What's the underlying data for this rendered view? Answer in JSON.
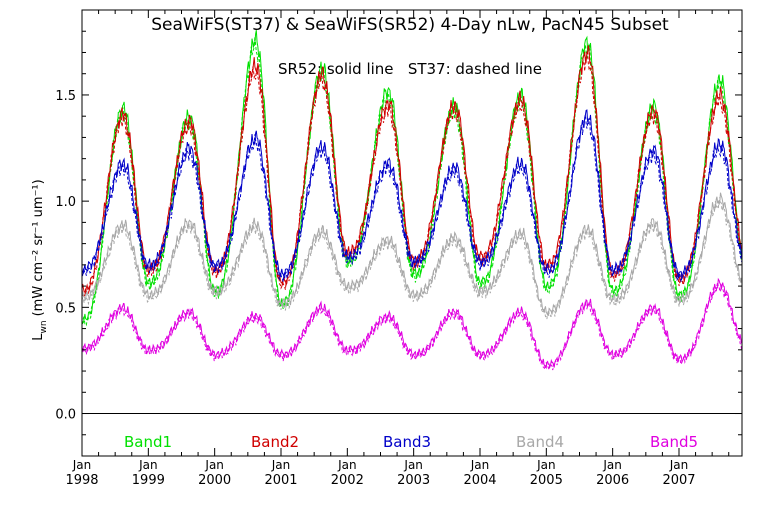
{
  "chart_data": {
    "type": "line",
    "title": "SeaWiFS(ST37) & SeaWiFS(SR52) 4-Day nLw, PacN45 Subset",
    "annotation": "SR52: solid line   ST37: dashed line",
    "ylabel_main": "L",
    "ylabel_sub": "wn",
    "ylabel_units": "(mW cm⁻² sr⁻¹ um⁻¹)",
    "xlim": [
      1998.0,
      2007.95
    ],
    "ylim": [
      -0.2,
      1.9
    ],
    "zero_line": 0.0,
    "y_ticks": [
      0.0,
      0.5,
      1.0,
      1.5
    ],
    "y_tick_labels": [
      "0.0",
      "0.5",
      "1.0",
      "1.5"
    ],
    "x_ticks": [
      1998,
      1999,
      2000,
      2001,
      2002,
      2003,
      2004,
      2005,
      2006,
      2007
    ],
    "x_tick_top_labels": [
      "Jan",
      "Jan",
      "Jan",
      "Jan",
      "Jan",
      "Jan",
      "Jan",
      "Jan",
      "Jan",
      "Jan"
    ],
    "x_tick_labels": [
      "1998",
      "1999",
      "2000",
      "2001",
      "2002",
      "2003",
      "2004",
      "2005",
      "2006",
      "2007"
    ],
    "series": [
      {
        "name": "Band1",
        "color": "#00e000",
        "peaks": [
          1.44,
          1.4,
          1.76,
          1.63,
          1.52,
          1.45,
          1.5,
          1.75,
          1.45,
          1.57
        ],
        "troughs": [
          0.44,
          0.62,
          0.58,
          0.52,
          0.72,
          0.66,
          0.62,
          0.6,
          0.58,
          0.56,
          0.7
        ]
      },
      {
        "name": "Band2",
        "color": "#d00000",
        "peaks": [
          1.41,
          1.38,
          1.64,
          1.6,
          1.46,
          1.45,
          1.48,
          1.7,
          1.43,
          1.5
        ],
        "troughs": [
          0.58,
          0.68,
          0.68,
          0.62,
          0.76,
          0.72,
          0.74,
          0.7,
          0.66,
          0.64,
          0.74
        ]
      },
      {
        "name": "Band3",
        "color": "#0000c8",
        "peaks": [
          1.18,
          1.25,
          1.3,
          1.26,
          1.18,
          1.16,
          1.18,
          1.4,
          1.24,
          1.27
        ],
        "troughs": [
          0.68,
          0.7,
          0.7,
          0.66,
          0.74,
          0.72,
          0.72,
          0.68,
          0.68,
          0.66,
          0.72
        ]
      },
      {
        "name": "Band4",
        "color": "#a8a8a8",
        "peaks": [
          0.89,
          0.9,
          0.89,
          0.86,
          0.82,
          0.83,
          0.85,
          0.87,
          0.9,
          1.01
        ],
        "troughs": [
          0.55,
          0.56,
          0.58,
          0.52,
          0.6,
          0.56,
          0.58,
          0.48,
          0.54,
          0.54,
          0.6
        ]
      },
      {
        "name": "Band5",
        "color": "#e000e0",
        "peaks": [
          0.5,
          0.48,
          0.46,
          0.5,
          0.46,
          0.48,
          0.48,
          0.52,
          0.5,
          0.61
        ],
        "troughs": [
          0.31,
          0.3,
          0.28,
          0.28,
          0.3,
          0.28,
          0.28,
          0.23,
          0.28,
          0.26,
          0.32
        ]
      }
    ],
    "legend": {
      "placement": "bottom",
      "entries": [
        "Band1",
        "Band2",
        "Band3",
        "Band4",
        "Band5"
      ]
    },
    "line_styles": {
      "SR52": "solid",
      "ST37": "dashed"
    },
    "grid": false,
    "time_step_days": 4
  }
}
